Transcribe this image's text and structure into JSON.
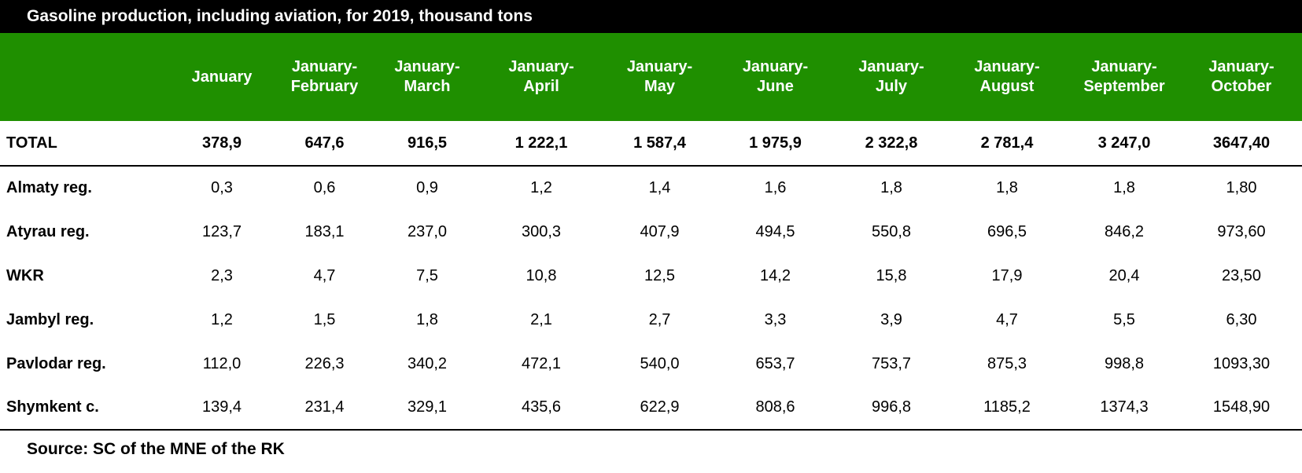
{
  "title": "Gasoline production, including aviation, for 2019, thousand tons",
  "columns": [
    "",
    "January",
    "January-\nFebruary",
    "January-\nMarch",
    "January-\nApril",
    "January-\nMay",
    "January-\nJune",
    "January-\nJuly",
    "January-\nAugust",
    "January-\nSeptember",
    "January-\nOctober"
  ],
  "rows": [
    {
      "label": "TOTAL",
      "values": [
        "378,9",
        "647,6",
        "916,5",
        "1 222,1",
        "1 587,4",
        "1 975,9",
        "2 322,8",
        "2 781,4",
        "3 247,0",
        "3647,40"
      ]
    },
    {
      "label": "Almaty reg.",
      "values": [
        "0,3",
        "0,6",
        "0,9",
        "1,2",
        "1,4",
        "1,6",
        "1,8",
        "1,8",
        "1,8",
        "1,80"
      ]
    },
    {
      "label": "Atyrau reg.",
      "values": [
        "123,7",
        "183,1",
        "237,0",
        "300,3",
        "407,9",
        "494,5",
        "550,8",
        "696,5",
        "846,2",
        "973,60"
      ]
    },
    {
      "label": "WKR",
      "values": [
        "2,3",
        "4,7",
        "7,5",
        "10,8",
        "12,5",
        "14,2",
        "15,8",
        "17,9",
        "20,4",
        "23,50"
      ]
    },
    {
      "label": "Jambyl reg.",
      "values": [
        "1,2",
        "1,5",
        "1,8",
        "2,1",
        "2,7",
        "3,3",
        "3,9",
        "4,7",
        "5,5",
        "6,30"
      ]
    },
    {
      "label": "Pavlodar reg.",
      "values": [
        "112,0",
        "226,3",
        "340,2",
        "472,1",
        "540,0",
        "653,7",
        "753,7",
        "875,3",
        "998,8",
        "1093,30"
      ]
    },
    {
      "label": "Shymkent c.",
      "values": [
        "139,4",
        "231,4",
        "329,1",
        "435,6",
        "622,9",
        "808,6",
        "996,8",
        "1185,2",
        "1374,3",
        "1548,90"
      ]
    }
  ],
  "source": "Source: SC of the MNE of the RK",
  "colors": {
    "title_bg": "#000000",
    "header_bg": "#1f8f00",
    "header_text": "#ffffff"
  }
}
